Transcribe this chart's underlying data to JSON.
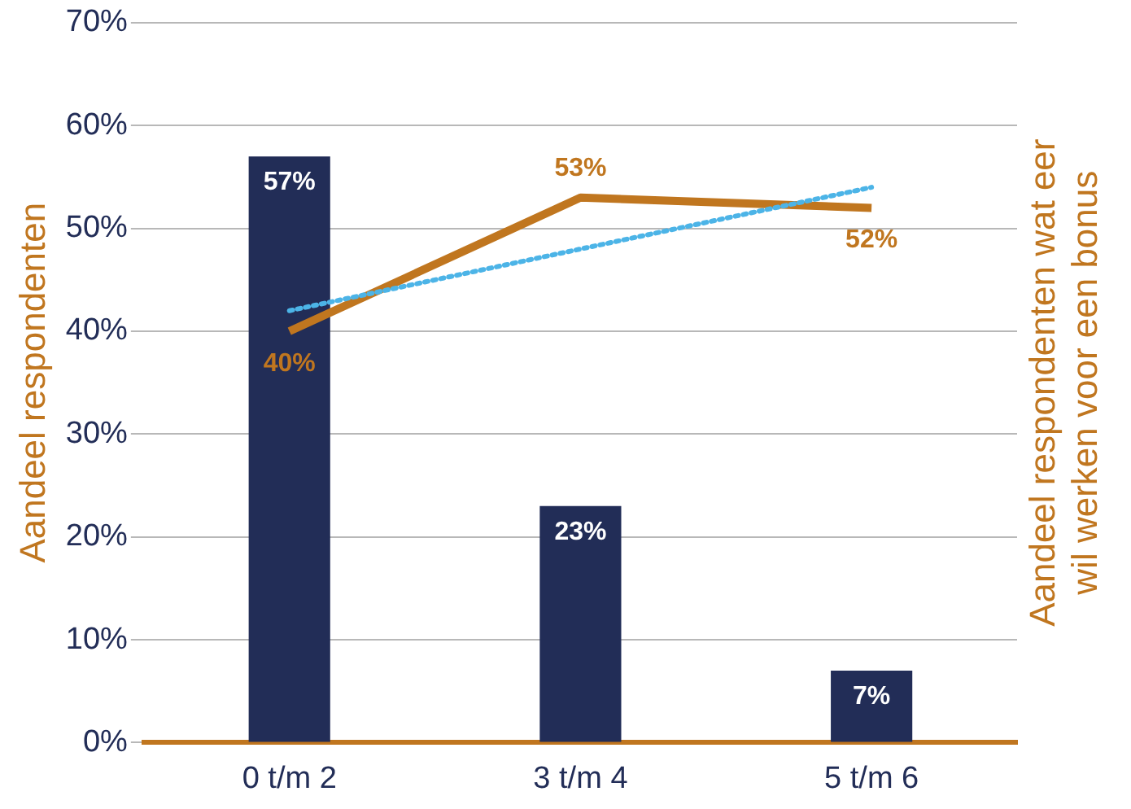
{
  "chart_data": {
    "type": "bar",
    "ylabel": "Aandeel respondenten",
    "y2label": "Aandeel respondenten wat eer wil werken voor een bonus",
    "categories": [
      "0 t/m 2",
      "3 t/m 4",
      "5 t/m 6"
    ],
    "series": [
      {
        "color": "#222d57",
        "values": [
          57,
          23,
          7
        ],
        "value_labels": [
          "57%",
          "23%",
          "7%"
        ]
      },
      {
        "type": "line",
        "color": "#c0761f",
        "values": [
          40,
          53,
          52
        ],
        "value_labels": [
          "40%",
          "53%",
          "52%"
        ],
        "marker": "none"
      },
      {
        "type": "line",
        "color": "#4cb4e7",
        "values": [
          42,
          48,
          54
        ],
        "line_style": "dotted",
        "marker": "none"
      }
    ],
    "ylim": [
      0,
      70
    ],
    "yticks": [
      {
        "value": 0,
        "label": "0%"
      },
      {
        "value": 10,
        "label": "10%"
      },
      {
        "value": 20,
        "label": "20%"
      },
      {
        "value": 30,
        "label": "30%"
      },
      {
        "value": 40,
        "label": "40%"
      },
      {
        "value": 50,
        "label": "50%"
      },
      {
        "value": 60,
        "label": "60%"
      },
      {
        "value": 70,
        "label": "70%"
      }
    ],
    "grid": "y",
    "legend": false
  }
}
